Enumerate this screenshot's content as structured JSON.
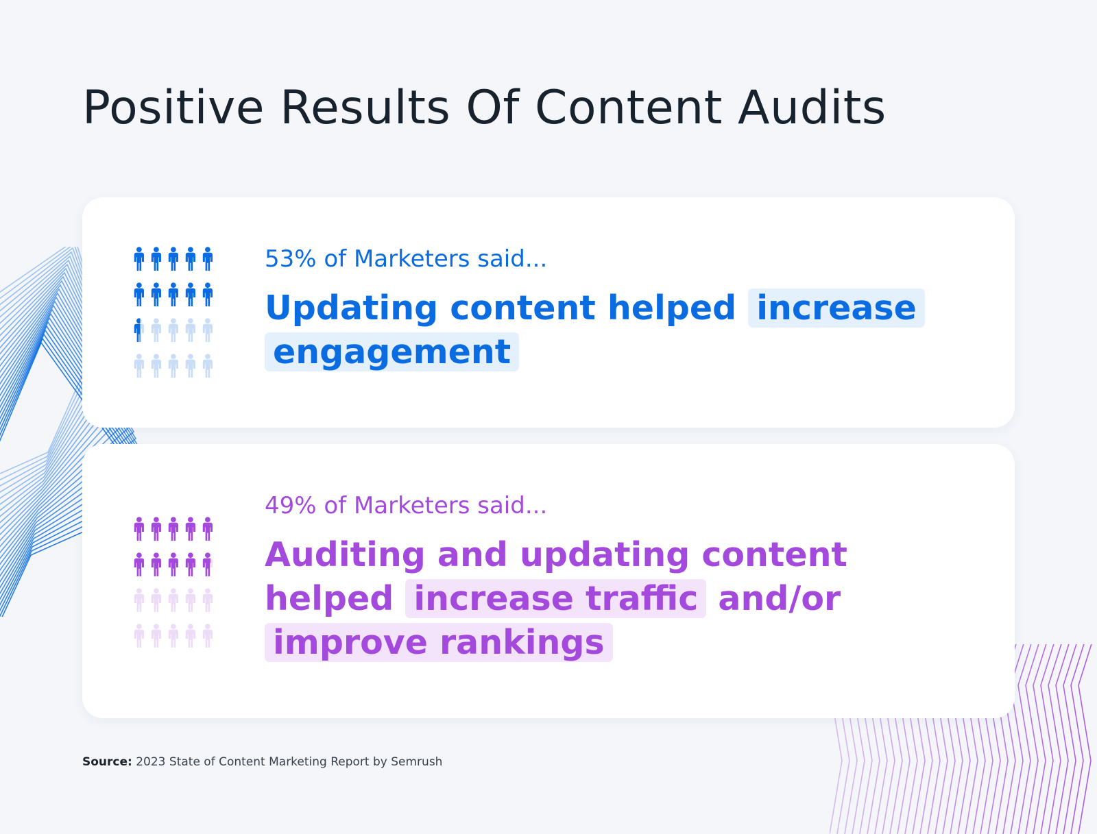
{
  "title": "Positive Results Of Content Audits",
  "colors": {
    "blue": "#0a6ce0",
    "blue_light": "#c9def6",
    "blue_highlight": "#e5f0fd",
    "purple": "#a349dc",
    "purple_light": "#eddcf7",
    "purple_highlight": "#f3e3fb"
  },
  "icon": "person-icon",
  "cards": [
    {
      "kicker": "53% of Marketers said...",
      "statement_parts": [
        "Updating content helped",
        "increase",
        "engagement"
      ],
      "percent": 53
    },
    {
      "kicker": "49% of Marketers said...",
      "statement_parts": [
        "Auditing and updating content helped",
        "increase traffic",
        "and/or",
        "improve rankings"
      ],
      "percent": 49
    }
  ],
  "source": {
    "label": "Source:",
    "text": "2023 State of Content Marketing Report by Semrush"
  },
  "chart_data": {
    "type": "pictogram",
    "icons_per_chart": 20,
    "rows": 4,
    "columns": 5,
    "series": [
      {
        "label": "53% of Marketers said...",
        "value": 53,
        "color": "#0a6ce0"
      },
      {
        "label": "49% of Marketers said...",
        "value": 49,
        "color": "#a349dc"
      }
    ]
  }
}
